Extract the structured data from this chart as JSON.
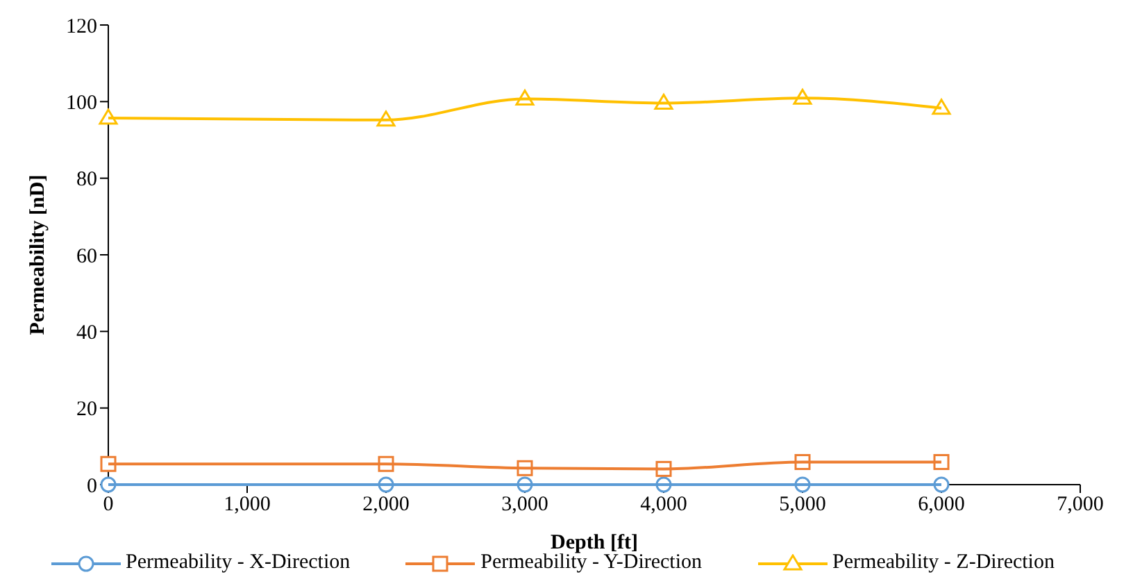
{
  "chart_data": {
    "type": "line",
    "xlabel": "Depth [ft]",
    "ylabel": "Permeability [nD]",
    "x": [
      0,
      2000,
      3000,
      4000,
      5000,
      6000
    ],
    "xlim": [
      0,
      7000
    ],
    "xticks": [
      0,
      {
        "value": 1000,
        "label": "1,000"
      },
      {
        "value": 2000,
        "label": "2,000"
      },
      {
        "value": 3000,
        "label": "3,000"
      },
      {
        "value": 4000,
        "label": "4,000"
      },
      {
        "value": 5000,
        "label": "5,000"
      },
      {
        "value": 6000,
        "label": "6,000"
      },
      {
        "value": 7000,
        "label": "7,000"
      }
    ],
    "ylim": [
      0,
      120
    ],
    "yticks": [
      0,
      20,
      40,
      60,
      80,
      100,
      120
    ],
    "grid": false,
    "legend": "bottom",
    "series": [
      {
        "name": "Permeability - X-Direction",
        "color": "#5b9bd5",
        "marker": "circle",
        "values": [
          0,
          0,
          0,
          0,
          0,
          0
        ]
      },
      {
        "name": "Permeability - Y-Direction",
        "color": "#ed7d31",
        "marker": "square",
        "values": [
          5.4,
          5.4,
          4.3,
          4.1,
          5.9,
          5.9
        ]
      },
      {
        "name": "Permeability - Z-Direction",
        "color": "#ffc000",
        "marker": "triangle",
        "values": [
          95.7,
          95.2,
          100.7,
          99.6,
          100.9,
          98.3
        ]
      }
    ]
  }
}
